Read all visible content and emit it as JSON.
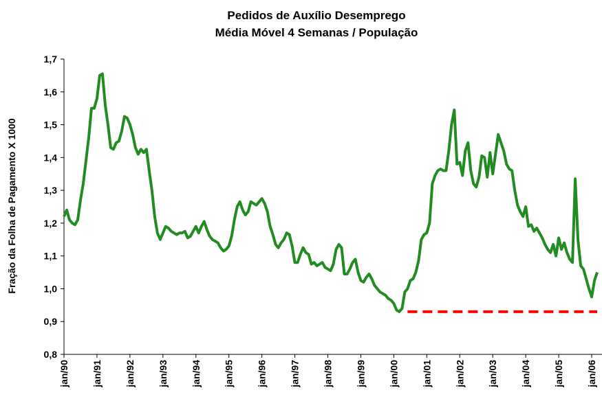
{
  "chart_data": {
    "type": "line",
    "title": "Pedidos de Auxílio Desemprego",
    "subtitle": "Média Móvel 4 Semanas / População",
    "y_label": "Fração da Folha de Pagamento X 1000",
    "categories": [
      "jan/90",
      null,
      null,
      null,
      null,
      null,
      null,
      null,
      null,
      null,
      null,
      null,
      "jan/91",
      null,
      null,
      null,
      null,
      null,
      null,
      null,
      null,
      null,
      null,
      null,
      "jan/92",
      null,
      null,
      null,
      null,
      null,
      null,
      null,
      null,
      null,
      null,
      null,
      "jan/93",
      null,
      null,
      null,
      null,
      null,
      null,
      null,
      null,
      null,
      null,
      null,
      "jan/94",
      null,
      null,
      null,
      null,
      null,
      null,
      null,
      null,
      null,
      null,
      null,
      "jan/95",
      null,
      null,
      null,
      null,
      null,
      null,
      null,
      null,
      null,
      null,
      null,
      "jan/96",
      null,
      null,
      null,
      null,
      null,
      null,
      null,
      null,
      null,
      null,
      null,
      "jan/97",
      null,
      null,
      null,
      null,
      null,
      null,
      null,
      null,
      null,
      null,
      null,
      "jan/98",
      null,
      null,
      null,
      null,
      null,
      null,
      null,
      null,
      null,
      null,
      null,
      "jan/99",
      null,
      null,
      null,
      null,
      null,
      null,
      null,
      null,
      null,
      null,
      null,
      "jan/00",
      null,
      null,
      null,
      null,
      null,
      null,
      null,
      null,
      null,
      null,
      null,
      "jan/01",
      null,
      null,
      null,
      null,
      null,
      null,
      null,
      null,
      null,
      null,
      null,
      "jan/02",
      null,
      null,
      null,
      null,
      null,
      null,
      null,
      null,
      null,
      null,
      null,
      "jan/03",
      null,
      null,
      null,
      null,
      null,
      null,
      null,
      null,
      null,
      null,
      null,
      "jan/04",
      null,
      null,
      null,
      null,
      null,
      null,
      null,
      null,
      null,
      null,
      null,
      "jan/05",
      null,
      null,
      null,
      null,
      null,
      null,
      null,
      null,
      null,
      null,
      null,
      "jan/06",
      null,
      null
    ],
    "series": [
      {
        "color": "#228b22",
        "values": [
          1.22,
          1.24,
          1.21,
          1.2,
          1.195,
          1.21,
          1.27,
          1.32,
          1.39,
          1.46,
          1.55,
          1.55,
          1.58,
          1.65,
          1.655,
          1.56,
          1.5,
          1.43,
          1.425,
          1.445,
          1.45,
          1.48,
          1.525,
          1.52,
          1.5,
          1.47,
          1.43,
          1.41,
          1.425,
          1.415,
          1.425,
          1.36,
          1.3,
          1.22,
          1.17,
          1.15,
          1.17,
          1.19,
          1.185,
          1.175,
          1.17,
          1.165,
          1.17,
          1.17,
          1.175,
          1.155,
          1.16,
          1.175,
          1.19,
          1.17,
          1.19,
          1.205,
          1.18,
          1.16,
          1.15,
          1.145,
          1.14,
          1.125,
          1.115,
          1.12,
          1.13,
          1.16,
          1.21,
          1.25,
          1.265,
          1.24,
          1.225,
          1.235,
          1.265,
          1.26,
          1.255,
          1.265,
          1.275,
          1.26,
          1.235,
          1.19,
          1.165,
          1.135,
          1.125,
          1.14,
          1.15,
          1.17,
          1.165,
          1.13,
          1.08,
          1.08,
          1.105,
          1.125,
          1.11,
          1.105,
          1.075,
          1.08,
          1.07,
          1.075,
          1.08,
          1.065,
          1.06,
          1.055,
          1.075,
          1.12,
          1.135,
          1.125,
          1.045,
          1.045,
          1.06,
          1.08,
          1.09,
          1.05,
          1.025,
          1.02,
          1.035,
          1.045,
          1.03,
          1.01,
          1.0,
          0.99,
          0.985,
          0.98,
          0.97,
          0.965,
          0.955,
          0.935,
          0.93,
          0.94,
          0.99,
          1.0,
          1.025,
          1.03,
          1.05,
          1.085,
          1.15,
          1.165,
          1.17,
          1.2,
          1.32,
          1.345,
          1.36,
          1.365,
          1.36,
          1.36,
          1.42,
          1.5,
          1.545,
          1.38,
          1.385,
          1.345,
          1.42,
          1.445,
          1.36,
          1.32,
          1.31,
          1.34,
          1.405,
          1.4,
          1.34,
          1.415,
          1.35,
          1.41,
          1.47,
          1.445,
          1.42,
          1.38,
          1.365,
          1.36,
          1.3,
          1.255,
          1.235,
          1.22,
          1.25,
          1.19,
          1.195,
          1.175,
          1.185,
          1.17,
          1.155,
          1.135,
          1.12,
          1.11,
          1.135,
          1.1,
          1.155,
          1.12,
          1.14,
          1.11,
          1.09,
          1.08,
          1.335,
          1.15,
          1.07,
          1.06,
          1.03,
          1.0,
          0.975,
          1.025,
          1.05
        ]
      },
      {
        "color": "#ff0000",
        "dashed": true,
        "values": [
          null,
          null,
          null,
          null,
          null,
          null,
          null,
          null,
          null,
          null,
          null,
          null,
          null,
          null,
          null,
          null,
          null,
          null,
          null,
          null,
          null,
          null,
          null,
          null,
          null,
          null,
          null,
          null,
          null,
          null,
          null,
          null,
          null,
          null,
          null,
          null,
          null,
          null,
          null,
          null,
          null,
          null,
          null,
          null,
          null,
          null,
          null,
          null,
          null,
          null,
          null,
          null,
          null,
          null,
          null,
          null,
          null,
          null,
          null,
          null,
          null,
          null,
          null,
          null,
          null,
          null,
          null,
          null,
          null,
          null,
          null,
          null,
          null,
          null,
          null,
          null,
          null,
          null,
          null,
          null,
          null,
          null,
          null,
          null,
          null,
          null,
          null,
          null,
          null,
          null,
          null,
          null,
          null,
          null,
          null,
          null,
          null,
          null,
          null,
          null,
          null,
          null,
          null,
          null,
          null,
          null,
          null,
          null,
          null,
          null,
          null,
          null,
          null,
          null,
          null,
          null,
          null,
          null,
          null,
          null,
          null,
          null,
          null,
          null,
          null,
          0.93,
          0.93,
          0.93,
          0.93,
          0.93,
          0.93,
          0.93,
          0.93,
          0.93,
          0.93,
          0.93,
          0.93,
          0.93,
          0.93,
          0.93,
          0.93,
          0.93,
          0.93,
          0.93,
          0.93,
          0.93,
          0.93,
          0.93,
          0.93,
          0.93,
          0.93,
          0.93,
          0.93,
          0.93,
          0.93,
          0.93,
          0.93,
          0.93,
          0.93,
          0.93,
          0.93,
          0.93,
          0.93,
          0.93,
          0.93,
          0.93,
          0.93,
          0.93,
          0.93,
          0.93,
          0.93,
          0.93,
          0.93,
          0.93,
          0.93,
          0.93,
          0.93,
          0.93,
          0.93,
          0.93,
          0.93,
          0.93,
          0.93,
          0.93,
          0.93,
          0.93,
          0.93,
          0.93,
          0.93,
          0.93,
          0.93,
          0.93,
          0.93,
          0.93,
          0.93
        ]
      }
    ],
    "ylim": [
      0.8,
      1.7
    ],
    "yticks": [
      {
        "value": 0.8,
        "label": "0,8"
      },
      {
        "value": 0.9,
        "label": "0,9"
      },
      {
        "value": 1.0,
        "label": "1,0"
      },
      {
        "value": 1.1,
        "label": "1,1"
      },
      {
        "value": 1.2,
        "label": "1,2"
      },
      {
        "value": 1.3,
        "label": "1,3"
      },
      {
        "value": 1.4,
        "label": "1,4"
      },
      {
        "value": 1.5,
        "label": "1,5"
      },
      {
        "value": 1.6,
        "label": "1,6"
      },
      {
        "value": 1.7,
        "label": "1,7"
      }
    ],
    "grid": false
  }
}
